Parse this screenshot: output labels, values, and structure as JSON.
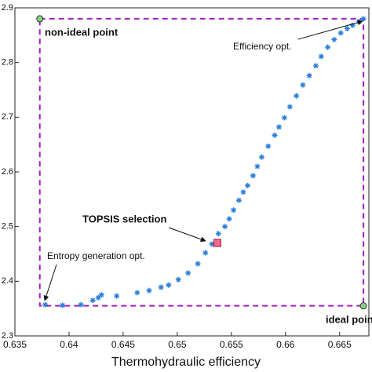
{
  "chart_data": {
    "type": "scatter",
    "xlabel": "Thermohydraulic efficiency",
    "xlim": [
      0.635,
      0.6677
    ],
    "ylim": [
      2.3,
      2.9
    ],
    "xticks": [
      0.635,
      0.64,
      0.645,
      0.65,
      0.655,
      0.66,
      0.665
    ],
    "yticks": [
      2.3,
      2.4,
      2.5,
      2.6,
      2.7,
      2.8,
      2.9
    ],
    "series": [
      {
        "color": "#2b7fd8",
        "x": [
          0.6378,
          0.6394,
          0.6411,
          0.6422,
          0.6427,
          0.643,
          0.6444,
          0.6463,
          0.6474,
          0.6485,
          0.6492,
          0.6501,
          0.651,
          0.6519,
          0.6526,
          0.6532,
          0.6538,
          0.6544,
          0.6548,
          0.6552,
          0.6557,
          0.6561,
          0.6565,
          0.657,
          0.6574,
          0.6578,
          0.6584,
          0.659,
          0.6594,
          0.6599,
          0.6604,
          0.661,
          0.6616,
          0.6622,
          0.6628,
          0.6633,
          0.6639,
          0.6645,
          0.6651,
          0.6657,
          0.6662,
          0.6668,
          0.6672
        ],
        "values": [
          2.357,
          2.356,
          2.357,
          2.365,
          2.37,
          2.375,
          2.373,
          2.379,
          2.383,
          2.389,
          2.393,
          2.403,
          2.415,
          2.432,
          2.452,
          2.468,
          2.487,
          2.5,
          2.514,
          2.53,
          2.548,
          2.563,
          2.575,
          2.593,
          2.61,
          2.627,
          2.647,
          2.667,
          2.682,
          2.699,
          2.719,
          2.739,
          2.759,
          2.776,
          2.794,
          2.811,
          2.828,
          2.842,
          2.854,
          2.862,
          2.868,
          2.875,
          2.88
        ]
      }
    ],
    "points": [
      {
        "label": "non-ideal point",
        "x": 0.6373,
        "y": 2.88,
        "color": "#7fd67f"
      },
      {
        "label": "ideal point",
        "x": 0.6672,
        "y": 2.355,
        "color": "#7fd67f"
      },
      {
        "label": "TOPSIS selection",
        "x": 0.6537,
        "y": 2.47,
        "color": "#f06a8a"
      }
    ],
    "annotations": [
      "Efficiency opt.",
      "Entropy generation opt."
    ],
    "box_color": "#a020c0"
  }
}
